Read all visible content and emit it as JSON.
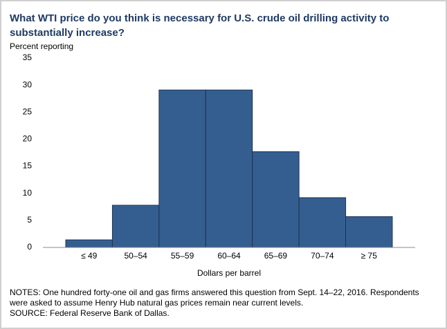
{
  "chart_data": {
    "type": "bar",
    "title": "What WTI price do you think is necessary for U.S. crude oil drilling activity to substantially increase?",
    "y_label": "Percent reporting",
    "x_label": "Dollars per barrel",
    "categories": [
      "≤ 49",
      "50–54",
      "55–59",
      "60–64",
      "65–69",
      "70–74",
      "≥ 75"
    ],
    "values": [
      1.4,
      7.8,
      29.1,
      29.1,
      17.7,
      9.2,
      5.7
    ],
    "color": "#355e90",
    "ylim": [
      0,
      35
    ],
    "yticks": [
      0,
      5,
      10,
      15,
      20,
      25,
      30,
      35
    ],
    "grid": false,
    "notes": "NOTES: One hundred forty-one oil and gas firms answered this question from Sept. 14–22, 2016. Respondents were asked to assume Henry Hub natural gas prices remain near current levels.",
    "source": "SOURCE: Federal Reserve Bank of Dallas."
  }
}
